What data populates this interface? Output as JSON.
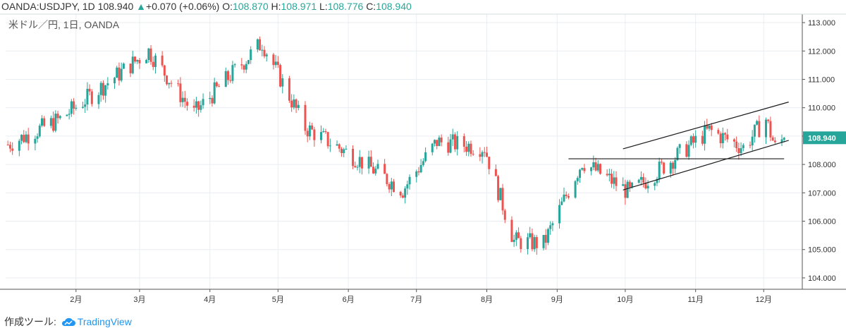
{
  "header": {
    "symbol": "OANDA:USDJPY, 1D",
    "last": "108.940",
    "arrow": "▲",
    "change": "+0.070 (+0.06%)",
    "o_label": "O:",
    "o": "108.870",
    "h_label": "H:",
    "h": "108.971",
    "l_label": "L:",
    "l": "108.776",
    "c_label": "C:",
    "c": "108.940"
  },
  "chart_data": {
    "type": "candlestick",
    "subtitle": "米ドル／円, 1日, OANDA",
    "y_range": [
      103.6,
      113.3
    ],
    "y_ticks": [
      "104.000",
      "105.000",
      "106.000",
      "107.000",
      "108.000",
      "109.000",
      "110.000",
      "111.000",
      "112.000",
      "113.000"
    ],
    "x_ticks": [
      "2月",
      "3月",
      "4月",
      "5月",
      "6月",
      "7月",
      "8月",
      "9月",
      "10月",
      "11月",
      "12月"
    ],
    "last_price_label": "108.940",
    "colors": {
      "up": "#26a69a",
      "down": "#ef5350",
      "grid": "#e9eef2",
      "axis": "#333333"
    },
    "key_points": [
      {
        "date": "2019-01-02",
        "close": 108.7
      },
      {
        "date": "2019-01-25",
        "close": 109.6
      },
      {
        "date": "2019-03-05",
        "close": 112.0
      },
      {
        "date": "2019-03-25",
        "close": 109.8
      },
      {
        "date": "2019-04-24",
        "close": 112.3
      },
      {
        "date": "2019-05-13",
        "close": 109.3
      },
      {
        "date": "2019-06-05",
        "close": 108.2
      },
      {
        "date": "2019-06-25",
        "close": 107.1
      },
      {
        "date": "2019-07-10",
        "close": 108.8
      },
      {
        "date": "2019-07-31",
        "close": 108.6
      },
      {
        "date": "2019-08-13",
        "close": 105.3
      },
      {
        "date": "2019-08-26",
        "close": 105.2
      },
      {
        "date": "2019-09-12",
        "close": 108.1
      },
      {
        "date": "2019-10-03",
        "close": 107.0
      },
      {
        "date": "2019-11-07",
        "close": 109.2
      },
      {
        "date": "2019-11-22",
        "close": 108.6
      },
      {
        "date": "2019-12-02",
        "close": 109.6
      },
      {
        "date": "2019-12-06",
        "close": 108.6
      },
      {
        "date": "2019-12-10",
        "close": 108.94
      }
    ],
    "trendlines": [
      {
        "from": {
          "date": "2019-09-30",
          "price": 108.55
        },
        "to": {
          "date": "2019-12-12",
          "price": 110.2
        }
      },
      {
        "from": {
          "date": "2019-09-30",
          "price": 107.1
        },
        "to": {
          "date": "2019-12-12",
          "price": 108.85
        }
      },
      {
        "from": {
          "date": "2019-09-06",
          "price": 108.2
        },
        "to": {
          "date": "2019-12-10",
          "price": 108.2
        }
      }
    ]
  },
  "footer": {
    "made_with": "作成ツール:",
    "brand": "TradingView"
  }
}
